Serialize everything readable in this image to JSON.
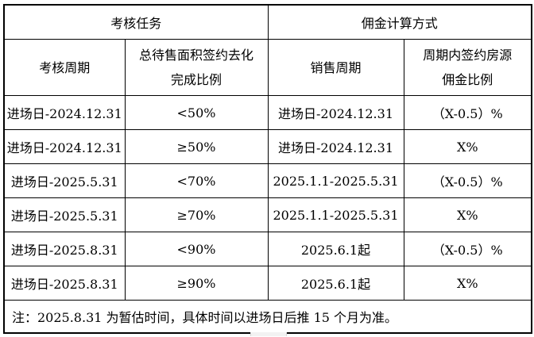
{
  "table": {
    "header_groups": [
      {
        "label": "考核任务"
      },
      {
        "label": "佣金计算方式"
      }
    ],
    "columns": [
      {
        "line1": "考核周期"
      },
      {
        "line1": "总待售面积签约去化",
        "line2": "完成比例"
      },
      {
        "line1": "销售周期"
      },
      {
        "line1": "周期内签约房源",
        "line2": "佣金比例"
      }
    ],
    "rows": [
      {
        "assessment_period": "进场日-2024.12.31",
        "completion_ratio": "<50%",
        "sales_period": "进场日-2024.12.31",
        "commission_rate": "（X-0.5）%"
      },
      {
        "assessment_period": "进场日-2024.12.31",
        "completion_ratio": "≥50%",
        "sales_period": "进场日-2024.12.31",
        "commission_rate": "X%"
      },
      {
        "assessment_period": "进场日-2025.5.31",
        "completion_ratio": "<70%",
        "sales_period": "2025.1.1-2025.5.31",
        "commission_rate": "（X-0.5）%"
      },
      {
        "assessment_period": "进场日-2025.5.31",
        "completion_ratio": "≥70%",
        "sales_period": "2025.1.1-2025.5.31",
        "commission_rate": "X%"
      },
      {
        "assessment_period": "进场日-2025.8.31",
        "completion_ratio": "<90%",
        "sales_period": "2025.6.1起",
        "commission_rate": "（X-0.5）%"
      },
      {
        "assessment_period": "进场日-2025.8.31",
        "completion_ratio": "≥90%",
        "sales_period": "2025.6.1起",
        "commission_rate": "X%"
      }
    ],
    "note": "注：2025.8.31 为暂估时间，具体时间以进场日后推 15 个月为准。"
  },
  "colors": {
    "border": "#000000",
    "background": "#ffffff",
    "text": "#000000",
    "scrollbar_thumb": "#f2f2f2"
  }
}
